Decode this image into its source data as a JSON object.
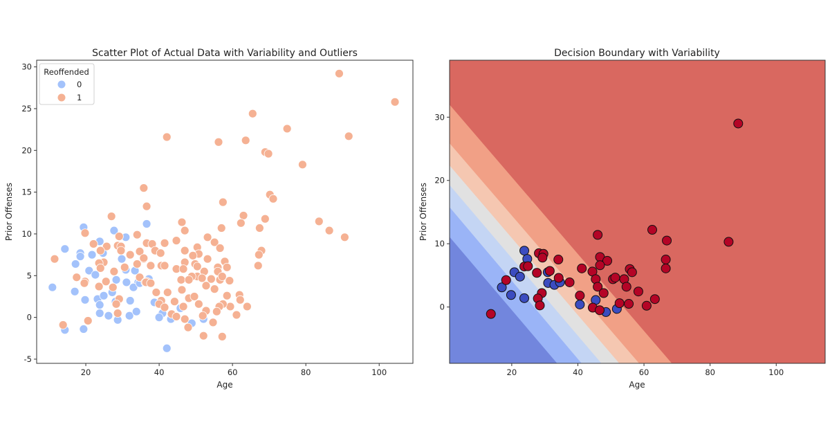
{
  "chart_data": [
    {
      "type": "scatter",
      "title": "Scatter Plot of Actual Data with Variability and Outliers",
      "xlabel": "Age",
      "ylabel": "Prior Offenses",
      "xlim": [
        6.6,
        109.2
      ],
      "ylim": [
        -5.5,
        30.8
      ],
      "xticks": [
        20,
        40,
        60,
        80,
        100
      ],
      "yticks": [
        -5,
        0,
        5,
        10,
        15,
        20,
        25,
        30
      ],
      "grid": false,
      "legend": {
        "title": "Reoffended",
        "position": "top-left"
      },
      "series": [
        {
          "name": "0",
          "color": "#a3c2fb",
          "points": [
            [
              19.4,
              10.8
            ],
            [
              27.7,
              10.4
            ],
            [
              30.9,
              9.6
            ],
            [
              36.6,
              11.2
            ],
            [
              23.8,
              9.1
            ],
            [
              14.3,
              8.2
            ],
            [
              18.5,
              7.7
            ],
            [
              18.5,
              7.3
            ],
            [
              21.7,
              7.5
            ],
            [
              24.7,
              7.7
            ],
            [
              29.8,
              7.0
            ],
            [
              17.2,
              6.4
            ],
            [
              20.9,
              5.6
            ],
            [
              22.6,
              5.1
            ],
            [
              30.9,
              5.7
            ],
            [
              33.4,
              5.6
            ],
            [
              28.3,
              4.5
            ],
            [
              31.1,
              4.2
            ],
            [
              34.3,
              4.2
            ],
            [
              10.9,
              3.6
            ],
            [
              17.0,
              3.1
            ],
            [
              19.8,
              2.1
            ],
            [
              23.2,
              2.2
            ],
            [
              24.9,
              2.6
            ],
            [
              27.2,
              3.0
            ],
            [
              23.8,
              1.5
            ],
            [
              28.1,
              1.9
            ],
            [
              32.1,
              2.0
            ],
            [
              33.0,
              3.6
            ],
            [
              34.7,
              4.1
            ],
            [
              23.8,
              0.5
            ],
            [
              26.2,
              0.2
            ],
            [
              28.7,
              -0.3
            ],
            [
              31.9,
              0.2
            ],
            [
              33.8,
              0.7
            ],
            [
              14.3,
              -1.5
            ],
            [
              19.4,
              -1.4
            ],
            [
              38.7,
              1.8
            ],
            [
              45.8,
              1.1
            ],
            [
              40.9,
              0.5
            ],
            [
              40.0,
              0.0
            ],
            [
              43.2,
              -0.2
            ],
            [
              48.9,
              -0.7
            ],
            [
              52.1,
              -0.2
            ],
            [
              42.1,
              -3.7
            ],
            [
              37.2,
              4.6
            ]
          ]
        },
        {
          "name": "1",
          "color": "#f5b193",
          "points": [
            [
              27.0,
              12.1
            ],
            [
              19.8,
              10.1
            ],
            [
              29.1,
              9.7
            ],
            [
              34.0,
              9.9
            ],
            [
              22.1,
              8.8
            ],
            [
              25.7,
              8.5
            ],
            [
              28.7,
              8.6
            ],
            [
              29.6,
              8.5
            ],
            [
              36.6,
              8.9
            ],
            [
              24.0,
              8.0
            ],
            [
              29.6,
              8.0
            ],
            [
              34.7,
              7.9
            ],
            [
              32.1,
              7.5
            ],
            [
              35.8,
              7.0
            ],
            [
              11.5,
              7.0
            ],
            [
              24.9,
              6.6
            ],
            [
              23.6,
              6.5
            ],
            [
              24.0,
              5.9
            ],
            [
              34.0,
              6.4
            ],
            [
              30.6,
              6.0
            ],
            [
              27.7,
              5.5
            ],
            [
              17.5,
              4.8
            ],
            [
              34.7,
              4.8
            ],
            [
              25.5,
              4.3
            ],
            [
              19.8,
              4.3
            ],
            [
              36.6,
              4.3
            ],
            [
              19.6,
              4.1
            ],
            [
              23.6,
              3.7
            ],
            [
              27.4,
              3.6
            ],
            [
              36.2,
              4.2
            ],
            [
              29.1,
              2.2
            ],
            [
              28.3,
              1.6
            ],
            [
              28.7,
              0.5
            ],
            [
              20.6,
              -0.4
            ],
            [
              13.8,
              -0.9
            ],
            [
              46.2,
              11.4
            ],
            [
              63.0,
              12.2
            ],
            [
              62.3,
              11.3
            ],
            [
              57.0,
              10.7
            ],
            [
              47.0,
              10.4
            ],
            [
              53.2,
              9.6
            ],
            [
              44.7,
              9.2
            ],
            [
              55.1,
              9.0
            ],
            [
              56.6,
              8.3
            ],
            [
              41.5,
              8.9
            ],
            [
              38.1,
              8.8
            ],
            [
              50.4,
              8.4
            ],
            [
              47.0,
              8.0
            ],
            [
              38.9,
              8.0
            ],
            [
              40.4,
              7.7
            ],
            [
              50.8,
              7.6
            ],
            [
              49.2,
              7.4
            ],
            [
              35.8,
              7.1
            ],
            [
              53.2,
              7.0
            ],
            [
              47.0,
              6.6
            ],
            [
              49.8,
              6.4
            ],
            [
              50.4,
              6.1
            ],
            [
              37.7,
              6.2
            ],
            [
              40.6,
              6.2
            ],
            [
              41.5,
              6.2
            ],
            [
              44.7,
              5.8
            ],
            [
              46.6,
              5.8
            ],
            [
              57.9,
              6.7
            ],
            [
              58.5,
              6.0
            ],
            [
              56.0,
              6.0
            ],
            [
              56.0,
              5.5
            ],
            [
              52.3,
              5.5
            ],
            [
              50.4,
              4.9
            ],
            [
              51.7,
              4.7
            ],
            [
              48.9,
              4.9
            ],
            [
              46.0,
              4.5
            ],
            [
              48.1,
              4.5
            ],
            [
              54.2,
              4.6
            ],
            [
              56.6,
              4.5
            ],
            [
              59.2,
              4.4
            ],
            [
              57.2,
              4.9
            ],
            [
              36.4,
              4.2
            ],
            [
              37.7,
              4.1
            ],
            [
              52.8,
              3.8
            ],
            [
              55.1,
              3.4
            ],
            [
              46.2,
              3.3
            ],
            [
              39.2,
              3.0
            ],
            [
              42.3,
              3.0
            ],
            [
              48.1,
              2.3
            ],
            [
              49.6,
              2.5
            ],
            [
              44.2,
              1.9
            ],
            [
              40.6,
              2.0
            ],
            [
              50.8,
              1.6
            ],
            [
              58.5,
              2.6
            ],
            [
              61.9,
              2.7
            ],
            [
              62.1,
              2.1
            ],
            [
              64.0,
              1.3
            ],
            [
              59.4,
              1.3
            ],
            [
              57.4,
              1.6
            ],
            [
              56.4,
              1.3
            ],
            [
              55.7,
              0.7
            ],
            [
              61.1,
              0.3
            ],
            [
              52.8,
              0.8
            ],
            [
              51.9,
              0.2
            ],
            [
              54.7,
              -0.6
            ],
            [
              47.0,
              -0.2
            ],
            [
              47.9,
              -1.2
            ],
            [
              43.4,
              0.4
            ],
            [
              44.7,
              0.1
            ],
            [
              40.0,
              1.6
            ],
            [
              41.5,
              1.2
            ],
            [
              46.6,
              1.3
            ],
            [
              52.1,
              -2.2
            ],
            [
              57.2,
              -2.3
            ],
            [
              104.3,
              25.8
            ],
            [
              89.1,
              29.2
            ],
            [
              91.7,
              21.7
            ],
            [
              74.9,
              22.6
            ],
            [
              65.5,
              24.4
            ],
            [
              63.6,
              21.2
            ],
            [
              42.1,
              21.6
            ],
            [
              56.2,
              21.0
            ],
            [
              68.9,
              19.8
            ],
            [
              69.8,
              19.6
            ],
            [
              79.1,
              18.3
            ],
            [
              70.2,
              14.7
            ],
            [
              71.1,
              14.2
            ],
            [
              35.8,
              15.5
            ],
            [
              36.6,
              13.3
            ],
            [
              57.4,
              13.8
            ],
            [
              83.6,
              11.5
            ],
            [
              86.4,
              10.4
            ],
            [
              90.6,
              9.6
            ],
            [
              68.9,
              11.8
            ],
            [
              67.4,
              10.7
            ],
            [
              67.9,
              8.0
            ],
            [
              67.2,
              7.5
            ],
            [
              67.0,
              6.2
            ]
          ]
        }
      ]
    },
    {
      "type": "scatter",
      "title": "Decision Boundary with Variability",
      "xlabel": "Age",
      "ylabel": "Prior Offenses",
      "xlim": [
        1.2,
        114.8
      ],
      "ylim": [
        -8.9,
        39.0
      ],
      "xticks": [
        20,
        40,
        60,
        80,
        100
      ],
      "yticks": [
        0,
        10,
        20,
        30
      ],
      "grid": false,
      "contour": {
        "band_colors": [
          "#7286dd",
          "#9ab4f7",
          "#c4d5f4",
          "#e1e1e1",
          "#f5c7b1",
          "#f1a086",
          "#d96860"
        ],
        "boundaries": [
          [
            [
              1.4,
              11.0
            ],
            [
              33.8,
              -8.9
            ]
          ],
          [
            [
              1.4,
              15.7
            ],
            [
              41.2,
              -8.9
            ]
          ],
          [
            [
              1.4,
              19.2
            ],
            [
              47.2,
              -8.9
            ]
          ],
          [
            [
              1.4,
              22.3
            ],
            [
              52.6,
              -8.9
            ]
          ],
          [
            [
              1.4,
              25.8
            ],
            [
              58.6,
              -8.9
            ]
          ],
          [
            [
              1.4,
              31.9
            ],
            [
              68.5,
              -8.9
            ]
          ]
        ]
      },
      "series": [
        {
          "color": "#3b4cc0",
          "points": [
            [
              23.8,
              8.9
            ],
            [
              24.7,
              7.6
            ],
            [
              20.8,
              5.5
            ],
            [
              22.5,
              4.8
            ],
            [
              17.0,
              3.1
            ],
            [
              19.8,
              1.9
            ],
            [
              23.8,
              1.4
            ],
            [
              30.9,
              5.5
            ],
            [
              31.0,
              3.8
            ],
            [
              32.9,
              3.5
            ],
            [
              34.6,
              3.9
            ],
            [
              40.6,
              0.4
            ],
            [
              45.4,
              1.1
            ],
            [
              48.5,
              -0.8
            ],
            [
              51.8,
              -0.3
            ]
          ]
        },
        {
          "color": "#b40426",
          "points": [
            [
              13.7,
              -1.1
            ],
            [
              46.0,
              11.4
            ],
            [
              62.5,
              12.2
            ],
            [
              66.9,
              10.5
            ],
            [
              28.2,
              8.5
            ],
            [
              29.6,
              8.4
            ],
            [
              29.3,
              7.8
            ],
            [
              34.1,
              7.5
            ],
            [
              23.8,
              6.4
            ],
            [
              24.9,
              6.45
            ],
            [
              27.6,
              5.4
            ],
            [
              31.5,
              5.7
            ],
            [
              34.2,
              4.6
            ],
            [
              37.5,
              3.9
            ],
            [
              41.2,
              6.1
            ],
            [
              44.4,
              5.6
            ],
            [
              46.7,
              7.9
            ],
            [
              48.9,
              7.3
            ],
            [
              46.7,
              6.6
            ],
            [
              45.4,
              4.4
            ],
            [
              46.0,
              3.2
            ],
            [
              47.8,
              2.2
            ],
            [
              29.1,
              2.2
            ],
            [
              27.9,
              1.35
            ],
            [
              28.5,
              0.25
            ],
            [
              40.6,
              1.8
            ],
            [
              44.5,
              -0.1
            ],
            [
              46.6,
              -0.5
            ],
            [
              50.6,
              4.4
            ],
            [
              51.3,
              4.65
            ],
            [
              54.0,
              4.4
            ],
            [
              54.7,
              3.2
            ],
            [
              55.7,
              6.0
            ],
            [
              56.4,
              5.5
            ],
            [
              58.3,
              2.45
            ],
            [
              52.6,
              0.6
            ],
            [
              55.4,
              0.5
            ],
            [
              60.8,
              0.2
            ],
            [
              63.3,
              1.25
            ],
            [
              66.6,
              7.5
            ],
            [
              66.6,
              6.1
            ],
            [
              18.3,
              4.25
            ],
            [
              85.6,
              10.3
            ],
            [
              88.5,
              29.0
            ]
          ]
        }
      ]
    }
  ]
}
